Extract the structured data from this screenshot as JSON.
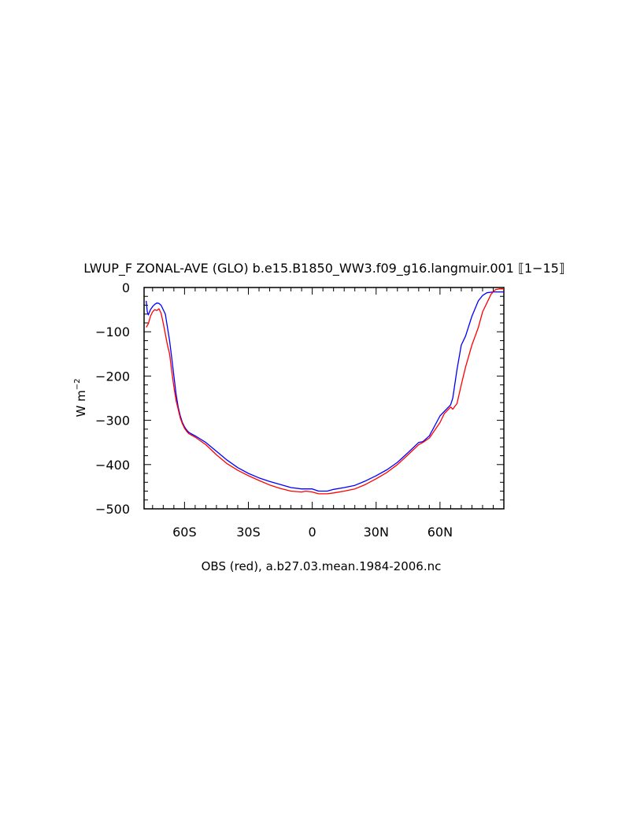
{
  "chart_data": {
    "type": "line",
    "title": "LWUP_F ZONAL-AVE (GLO) b.e15.B1850_WW3.f09_g16.langmuir.001 ⟦1−15⟧",
    "ylabel": "W m",
    "ylabel_exponent": "−2",
    "xlabel": "OBS (red), a.b27.03.mean.1984-2006.nc",
    "xlim": [
      -79,
      90
    ],
    "ylim": [
      -500,
      0
    ],
    "x_ticks": [
      {
        "value": -60,
        "label": "60S"
      },
      {
        "value": -30,
        "label": "30S"
      },
      {
        "value": 0,
        "label": "0"
      },
      {
        "value": 30,
        "label": "30N"
      },
      {
        "value": 60,
        "label": "60N"
      }
    ],
    "y_ticks": [
      {
        "value": 0,
        "label": "0"
      },
      {
        "value": -100,
        "label": "−100"
      },
      {
        "value": -200,
        "label": "−200"
      },
      {
        "value": -300,
        "label": "−300"
      },
      {
        "value": -400,
        "label": "−400"
      },
      {
        "value": -500,
        "label": "−500"
      }
    ],
    "grid": false,
    "series": [
      {
        "color": "#0000ff",
        "x": [
          -78,
          -77.5,
          -77,
          -76,
          -75,
          -74,
          -73,
          -72,
          -71,
          -70,
          -69,
          -68,
          -67,
          -66,
          -65,
          -64,
          -63,
          -62,
          -61,
          -60,
          -59,
          -58,
          -57,
          -55,
          -50,
          -45,
          -40,
          -35,
          -30,
          -25,
          -20,
          -15,
          -10,
          -5,
          0,
          3,
          7,
          10,
          15,
          20,
          25,
          30,
          35,
          40,
          45,
          50,
          52,
          55,
          60,
          65,
          66,
          68,
          70,
          72,
          75,
          78,
          80,
          82,
          85,
          88,
          90
        ],
        "y": [
          -30,
          -55,
          -62,
          -50,
          -43,
          -38,
          -35,
          -36,
          -40,
          -50,
          -60,
          -90,
          -120,
          -160,
          -200,
          -240,
          -270,
          -290,
          -305,
          -315,
          -322,
          -327,
          -330,
          -335,
          -350,
          -370,
          -390,
          -407,
          -420,
          -430,
          -438,
          -445,
          -452,
          -455,
          -455,
          -460,
          -460,
          -456,
          -452,
          -447,
          -437,
          -425,
          -412,
          -395,
          -373,
          -350,
          -348,
          -335,
          -290,
          -265,
          -250,
          -185,
          -130,
          -110,
          -65,
          -30,
          -18,
          -12,
          -10,
          -10,
          -10
        ]
      },
      {
        "color": "#ff0000",
        "x": [
          -78,
          -77,
          -76,
          -75,
          -74,
          -73,
          -72,
          -71,
          -70,
          -69,
          -68,
          -67,
          -66,
          -65,
          -64,
          -63,
          -62,
          -61,
          -60,
          -59,
          -58,
          -57,
          -55,
          -50,
          -45,
          -40,
          -35,
          -30,
          -25,
          -20,
          -15,
          -10,
          -5,
          -3,
          0,
          3,
          7,
          10,
          15,
          20,
          25,
          30,
          35,
          40,
          45,
          50,
          52,
          55,
          60,
          62,
          64,
          65,
          66,
          68,
          70,
          72,
          75,
          78,
          80,
          82,
          84,
          86,
          88,
          90
        ],
        "y": [
          -90,
          -82,
          -65,
          -55,
          -50,
          -52,
          -48,
          -58,
          -80,
          -105,
          -130,
          -150,
          -190,
          -225,
          -255,
          -275,
          -295,
          -308,
          -318,
          -325,
          -330,
          -333,
          -338,
          -355,
          -378,
          -398,
          -413,
          -425,
          -436,
          -446,
          -454,
          -460,
          -462,
          -460,
          -462,
          -466,
          -466,
          -464,
          -460,
          -455,
          -445,
          -432,
          -418,
          -400,
          -378,
          -355,
          -350,
          -340,
          -305,
          -285,
          -275,
          -270,
          -275,
          -262,
          -220,
          -180,
          -130,
          -90,
          -55,
          -35,
          -15,
          -5,
          -3,
          -3
        ]
      }
    ]
  }
}
